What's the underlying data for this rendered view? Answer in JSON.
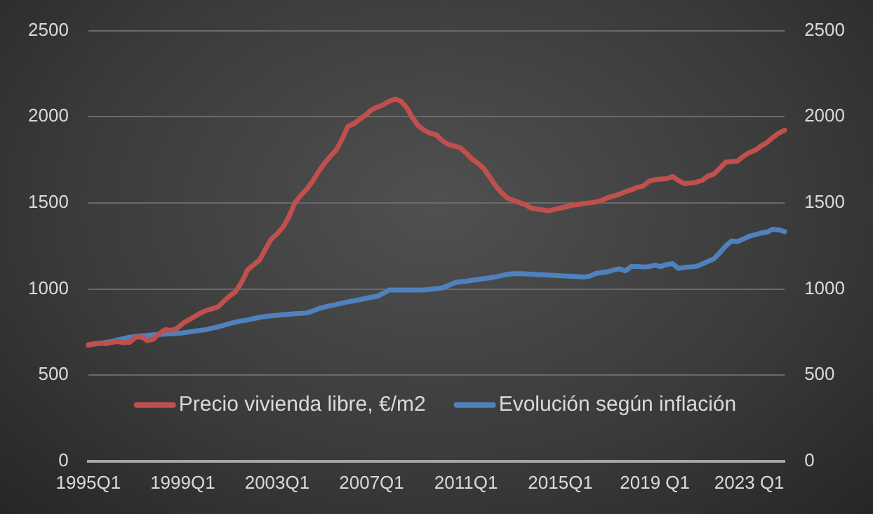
{
  "chart_data": {
    "type": "line",
    "legend": "bottom",
    "grid": "y",
    "line_style": "solid",
    "marker": "none",
    "categories": [
      "1995Q1",
      null,
      null,
      null,
      null,
      null,
      null,
      null,
      null,
      null,
      null,
      null,
      null,
      null,
      null,
      null,
      "1999Q1",
      null,
      null,
      null,
      null,
      null,
      null,
      null,
      null,
      null,
      null,
      null,
      null,
      null,
      null,
      null,
      "2003Q1",
      null,
      null,
      null,
      null,
      null,
      null,
      null,
      null,
      null,
      null,
      null,
      null,
      null,
      null,
      null,
      "2007Q1",
      null,
      null,
      null,
      null,
      null,
      null,
      null,
      null,
      null,
      null,
      null,
      null,
      null,
      null,
      null,
      "2011Q1",
      null,
      null,
      null,
      null,
      null,
      null,
      null,
      null,
      null,
      null,
      null,
      null,
      null,
      null,
      null,
      "2015Q1",
      null,
      null,
      null,
      null,
      null,
      null,
      null,
      null,
      null,
      null,
      null,
      null,
      null,
      null,
      null,
      "2019 Q1",
      null,
      null,
      null,
      null,
      null,
      null,
      null,
      null,
      null,
      null,
      null,
      null,
      null,
      null,
      null,
      "2023 Q1",
      null,
      null,
      null,
      null,
      null,
      null
    ],
    "ylim": [
      0,
      2500
    ],
    "yticks": [
      0,
      500,
      1000,
      1500,
      2000,
      2500
    ],
    "y2lim": [
      0,
      2500
    ],
    "y2ticks": [
      0,
      500,
      1000,
      1500,
      2000,
      2500
    ],
    "series": [
      {
        "name": "Precio vivienda libre, €/m2",
        "color": "#c0504d",
        "values": [
          675,
          682,
          686,
          682,
          690,
          694,
          688,
          690,
          720,
          722,
          700,
          708,
          740,
          764,
          760,
          770,
          800,
          820,
          840,
          860,
          875,
          885,
          897,
          930,
          960,
          986,
          1040,
          1111,
          1140,
          1167,
          1230,
          1290,
          1320,
          1360,
          1420,
          1500,
          1542,
          1580,
          1625,
          1680,
          1730,
          1770,
          1806,
          1870,
          1944,
          1960,
          1985,
          2010,
          2040,
          2056,
          2070,
          2090,
          2103,
          2090,
          2050,
          1990,
          1944,
          1920,
          1903,
          1895,
          1860,
          1840,
          1830,
          1820,
          1790,
          1755,
          1730,
          1700,
          1650,
          1600,
          1560,
          1528,
          1515,
          1502,
          1490,
          1470,
          1464,
          1460,
          1453,
          1462,
          1470,
          1478,
          1486,
          1490,
          1497,
          1500,
          1505,
          1514,
          1530,
          1540,
          1550,
          1565,
          1575,
          1590,
          1597,
          1625,
          1635,
          1638,
          1640,
          1653,
          1630,
          1611,
          1615,
          1620,
          1630,
          1655,
          1667,
          1700,
          1736,
          1740,
          1742,
          1770,
          1792,
          1805,
          1830,
          1850,
          1880,
          1905,
          1922
        ]
      },
      {
        "name": "Evolución según inflación",
        "color": "#4f81bd",
        "values": [
          675,
          680,
          685,
          690,
          695,
          705,
          712,
          720,
          724,
          728,
          730,
          734,
          736,
          738,
          740,
          742,
          745,
          750,
          755,
          760,
          764,
          772,
          780,
          790,
          800,
          808,
          815,
          820,
          828,
          835,
          840,
          844,
          847,
          850,
          853,
          856,
          858,
          861,
          872,
          885,
          895,
          903,
          910,
          918,
          925,
          931,
          938,
          945,
          952,
          958,
          975,
          994,
          994,
          994,
          994,
          994,
          994,
          995,
          998,
          1002,
          1006,
          1020,
          1035,
          1042,
          1045,
          1050,
          1055,
          1060,
          1064,
          1070,
          1078,
          1085,
          1089,
          1089,
          1088,
          1086,
          1084,
          1083,
          1081,
          1079,
          1077,
          1075,
          1073,
          1071,
          1069,
          1075,
          1090,
          1095,
          1100,
          1110,
          1117,
          1105,
          1131,
          1131,
          1128,
          1130,
          1138,
          1130,
          1142,
          1147,
          1119,
          1125,
          1128,
          1131,
          1145,
          1160,
          1175,
          1210,
          1250,
          1278,
          1275,
          1290,
          1306,
          1315,
          1325,
          1330,
          1347,
          1343,
          1333
        ]
      }
    ]
  }
}
